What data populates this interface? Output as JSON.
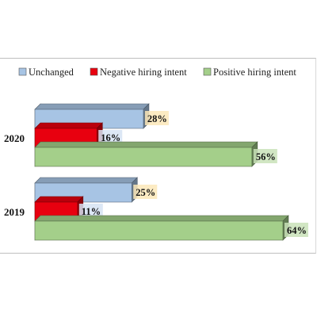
{
  "chart_data": {
    "type": "bar",
    "orientation": "horizontal",
    "style": "3d",
    "categories": [
      "2020",
      "2019"
    ],
    "series": [
      {
        "name": "Unchanged",
        "values": [
          28,
          25
        ],
        "color": "#a7c4e4"
      },
      {
        "name": "Negative hiring intent",
        "values": [
          16,
          11
        ],
        "color": "#e8000f"
      },
      {
        "name": "Positive hiring intent",
        "values": [
          56,
          64
        ],
        "color": "#a4cf8a"
      }
    ],
    "value_labels": {
      "2020": [
        "28%",
        "16%",
        "56%"
      ],
      "2019": [
        "25%",
        "11%",
        "64%"
      ]
    },
    "xlim": [
      0,
      70
    ],
    "unit": "%",
    "legend_position": "top",
    "grid": false,
    "title": "",
    "xlabel": "",
    "ylabel": ""
  }
}
